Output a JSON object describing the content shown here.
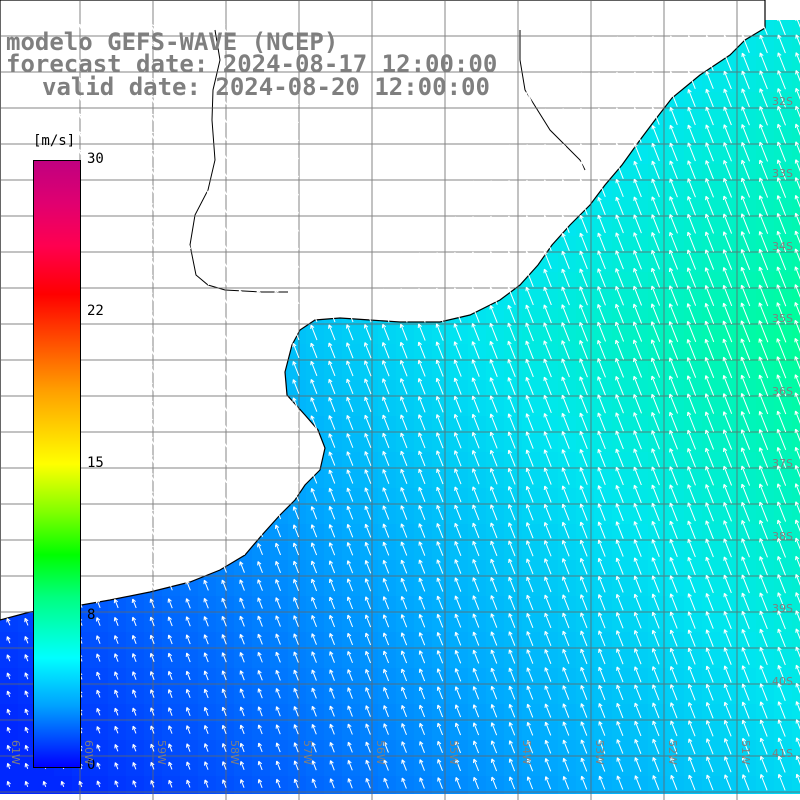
{
  "title": {
    "model": "modelo GEFS-WAVE (NCEP)",
    "forecast": "forecast date: 2024-08-17 12:00:00",
    "valid": "valid date: 2024-08-20 12:00:00"
  },
  "colorbar": {
    "unit": "[m/s]",
    "min": 0,
    "max": 30,
    "ticks": [
      "30",
      "22",
      "15",
      "8",
      "0"
    ],
    "tick_values": [
      30,
      22,
      15,
      8,
      0
    ]
  },
  "map": {
    "lon_labels": [
      "61W",
      "60W",
      "59W",
      "58W",
      "57W",
      "56W",
      "55W",
      "54W",
      "53W",
      "52W",
      "51W"
    ],
    "lat_labels": [
      "32S",
      "33S",
      "34S",
      "35S",
      "36S",
      "37S",
      "38S",
      "39S",
      "40S",
      "41S"
    ],
    "field": "wind speed",
    "palette": {
      "low": "#0000ff",
      "mid": "#00ffff",
      "high": "#00ff80"
    }
  }
}
